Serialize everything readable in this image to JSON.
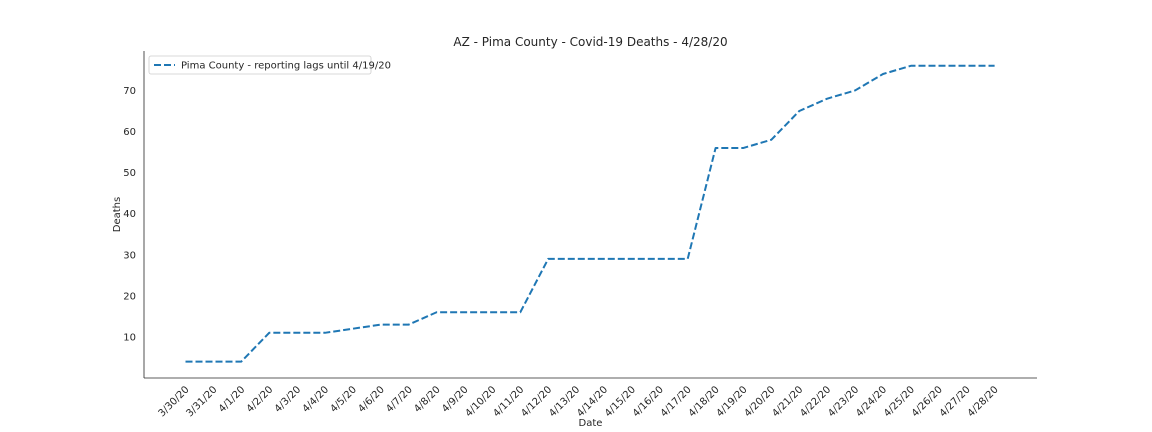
{
  "chart_data": {
    "type": "line",
    "title": "AZ - Pima County - Covid-19 Deaths - 4/28/20",
    "xlabel": "Date",
    "ylabel": "Deaths",
    "categories": [
      "3/30/20",
      "3/31/20",
      "4/1/20",
      "4/2/20",
      "4/3/20",
      "4/4/20",
      "4/5/20",
      "4/6/20",
      "4/7/20",
      "4/8/20",
      "4/9/20",
      "4/10/20",
      "4/11/20",
      "4/12/20",
      "4/13/20",
      "4/14/20",
      "4/15/20",
      "4/16/20",
      "4/17/20",
      "4/18/20",
      "4/19/20",
      "4/20/20",
      "4/21/20",
      "4/22/20",
      "4/23/20",
      "4/24/20",
      "4/25/20",
      "4/26/20",
      "4/27/20",
      "4/28/20"
    ],
    "series": [
      {
        "name": "Pima County - reporting lags until 4/19/20",
        "color": "#1f77b4",
        "style": "dashed",
        "values": [
          4,
          4,
          4,
          11,
          11,
          11,
          12,
          13,
          13,
          16,
          16,
          16,
          16,
          29,
          29,
          29,
          29,
          29,
          29,
          56,
          56,
          58,
          65,
          68,
          70,
          74,
          76,
          76,
          76,
          76
        ]
      }
    ],
    "yticks": [
      10,
      20,
      30,
      40,
      50,
      60,
      70
    ],
    "ylim": [
      0,
      79.6
    ],
    "legend_position": "top-left",
    "grid": false
  }
}
